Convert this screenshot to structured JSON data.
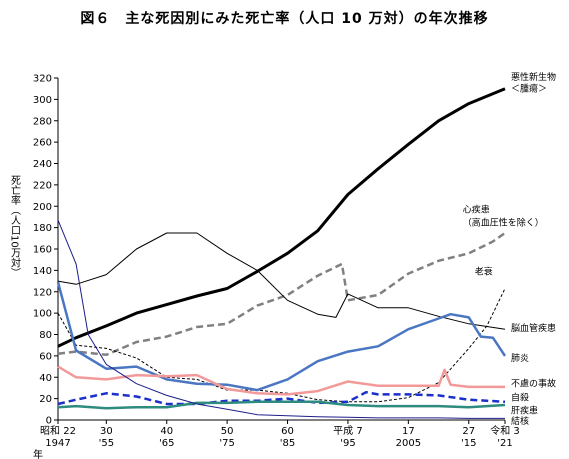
{
  "title": "図６　主な死因別にみた死亡率（人口 10 万対）の年次推移",
  "chart_data": {
    "type": "line",
    "title": "図６　主な死因別にみた死亡率（人口 10 万対）の年次推移",
    "ylabel": "死亡率（人口10万対）",
    "xlabel": "年",
    "ylim": [
      0,
      320
    ],
    "xlim": [
      1947,
      2021
    ],
    "grid": false,
    "y_ticks": [
      "0",
      "20",
      "40",
      "60",
      "80",
      "100",
      "120",
      "140",
      "160",
      "180",
      "200",
      "220",
      "240",
      "260",
      "280",
      "300",
      "320"
    ],
    "x_ticks": [
      {
        "x": 1947,
        "top": "昭和 22",
        "bottom": "1947"
      },
      {
        "x": 1955,
        "top": "30",
        "bottom": "'55"
      },
      {
        "x": 1965,
        "top": "40",
        "bottom": "'65"
      },
      {
        "x": 1975,
        "top": "50",
        "bottom": "'75"
      },
      {
        "x": 1985,
        "top": "60",
        "bottom": "'85"
      },
      {
        "x": 1995,
        "top": "平成 7",
        "bottom": "'95"
      },
      {
        "x": 2005,
        "top": "17",
        "bottom": "2005"
      },
      {
        "x": 2015,
        "top": "27",
        "bottom": "'15"
      },
      {
        "x": 2021,
        "top": "令和 3",
        "bottom": "'21"
      }
    ],
    "series": [
      {
        "name": "悪性新生物＜腫瘍＞",
        "color": "#000000",
        "dash": "",
        "width": 3,
        "points": [
          [
            1947,
            69
          ],
          [
            1950,
            77
          ],
          [
            1955,
            88
          ],
          [
            1960,
            100
          ],
          [
            1965,
            108
          ],
          [
            1970,
            116
          ],
          [
            1975,
            123
          ],
          [
            1980,
            139
          ],
          [
            1985,
            156
          ],
          [
            1990,
            177
          ],
          [
            1995,
            211
          ],
          [
            2000,
            235
          ],
          [
            2005,
            258
          ],
          [
            2010,
            280
          ],
          [
            2015,
            296
          ],
          [
            2021,
            310
          ]
        ]
      },
      {
        "name": "心疾患（高血圧性を除く）",
        "color": "#808080",
        "dash": "7,4",
        "width": 2.5,
        "points": [
          [
            1947,
            62
          ],
          [
            1950,
            64
          ],
          [
            1955,
            61
          ],
          [
            1960,
            73
          ],
          [
            1965,
            78
          ],
          [
            1970,
            87
          ],
          [
            1975,
            90
          ],
          [
            1980,
            107
          ],
          [
            1985,
            117
          ],
          [
            1990,
            135
          ],
          [
            1994,
            146
          ],
          [
            1995,
            112
          ],
          [
            2000,
            117
          ],
          [
            2005,
            137
          ],
          [
            2010,
            149
          ],
          [
            2015,
            156
          ],
          [
            2019,
            167
          ],
          [
            2021,
            175
          ]
        ]
      },
      {
        "name": "老衰",
        "color": "#000000",
        "dash": "3,2",
        "width": 1,
        "points": [
          [
            1947,
            100
          ],
          [
            1950,
            70
          ],
          [
            1955,
            67
          ],
          [
            1960,
            58
          ],
          [
            1965,
            40
          ],
          [
            1970,
            38
          ],
          [
            1975,
            28
          ],
          [
            1980,
            28
          ],
          [
            1985,
            25
          ],
          [
            1990,
            19
          ],
          [
            1995,
            17
          ],
          [
            2000,
            17
          ],
          [
            2005,
            21
          ],
          [
            2010,
            35
          ],
          [
            2015,
            67
          ],
          [
            2018,
            88
          ],
          [
            2021,
            123
          ]
        ]
      },
      {
        "name": "脳血管疾患",
        "color": "#000000",
        "dash": "",
        "width": 1,
        "points": [
          [
            1947,
            130
          ],
          [
            1950,
            127
          ],
          [
            1955,
            136
          ],
          [
            1960,
            160
          ],
          [
            1965,
            175
          ],
          [
            1970,
            175
          ],
          [
            1975,
            156
          ],
          [
            1980,
            140
          ],
          [
            1985,
            112
          ],
          [
            1990,
            99
          ],
          [
            1993,
            96
          ],
          [
            1995,
            118
          ],
          [
            2000,
            105
          ],
          [
            2005,
            105
          ],
          [
            2010,
            97
          ],
          [
            2015,
            90
          ],
          [
            2021,
            85
          ]
        ]
      },
      {
        "name": "肺炎",
        "color": "#4A76C2",
        "dash": "",
        "width": 2.5,
        "points": [
          [
            1947,
            129
          ],
          [
            1950,
            65
          ],
          [
            1955,
            48
          ],
          [
            1960,
            50
          ],
          [
            1965,
            38
          ],
          [
            1970,
            34
          ],
          [
            1975,
            33
          ],
          [
            1980,
            28
          ],
          [
            1985,
            38
          ],
          [
            1990,
            55
          ],
          [
            1995,
            64
          ],
          [
            2000,
            69
          ],
          [
            2005,
            85
          ],
          [
            2010,
            95
          ],
          [
            2012,
            99
          ],
          [
            2015,
            96
          ],
          [
            2017,
            78
          ],
          [
            2019,
            77
          ],
          [
            2021,
            60
          ]
        ]
      },
      {
        "name": "不慮の事故",
        "color": "#F29A9A",
        "dash": "",
        "width": 2.5,
        "points": [
          [
            1947,
            50
          ],
          [
            1950,
            40
          ],
          [
            1955,
            38
          ],
          [
            1960,
            42
          ],
          [
            1965,
            41
          ],
          [
            1970,
            42
          ],
          [
            1975,
            29
          ],
          [
            1980,
            25
          ],
          [
            1985,
            24
          ],
          [
            1990,
            27
          ],
          [
            1995,
            36
          ],
          [
            2000,
            32
          ],
          [
            2005,
            32
          ],
          [
            2010,
            32
          ],
          [
            2011,
            47
          ],
          [
            2012,
            33
          ],
          [
            2015,
            31
          ],
          [
            2021,
            31
          ]
        ]
      },
      {
        "name": "自殺",
        "color": "#1B2FC9",
        "dash": "7,4",
        "width": 2.5,
        "points": [
          [
            1947,
            15
          ],
          [
            1950,
            19
          ],
          [
            1955,
            25
          ],
          [
            1960,
            22
          ],
          [
            1965,
            15
          ],
          [
            1970,
            15
          ],
          [
            1975,
            18
          ],
          [
            1980,
            18
          ],
          [
            1985,
            20
          ],
          [
            1990,
            16
          ],
          [
            1995,
            17
          ],
          [
            1998,
            26
          ],
          [
            2000,
            24
          ],
          [
            2005,
            24
          ],
          [
            2010,
            23
          ],
          [
            2015,
            19
          ],
          [
            2021,
            17
          ]
        ]
      },
      {
        "name": "肝疾患",
        "color": "#2E8B80",
        "dash": "",
        "width": 2.5,
        "points": [
          [
            1947,
            12
          ],
          [
            1950,
            13
          ],
          [
            1955,
            11
          ],
          [
            1960,
            12
          ],
          [
            1965,
            12
          ],
          [
            1970,
            16
          ],
          [
            1975,
            16
          ],
          [
            1980,
            17
          ],
          [
            1985,
            17
          ],
          [
            1990,
            17
          ],
          [
            1995,
            14
          ],
          [
            2000,
            13
          ],
          [
            2005,
            13
          ],
          [
            2010,
            13
          ],
          [
            2015,
            12
          ],
          [
            2021,
            14
          ]
        ]
      },
      {
        "name": "結核",
        "color": "#1E1E8C",
        "dash": "",
        "width": 1,
        "points": [
          [
            1947,
            187
          ],
          [
            1950,
            146
          ],
          [
            1952,
            80
          ],
          [
            1955,
            52
          ],
          [
            1960,
            34
          ],
          [
            1965,
            23
          ],
          [
            1970,
            15
          ],
          [
            1975,
            10
          ],
          [
            1980,
            5
          ],
          [
            1985,
            4
          ],
          [
            1990,
            3
          ],
          [
            1995,
            2.5
          ],
          [
            2000,
            2
          ],
          [
            2005,
            2
          ],
          [
            2010,
            2
          ],
          [
            2015,
            1.5
          ],
          [
            2021,
            1.5
          ]
        ]
      }
    ],
    "annotations": [
      {
        "text": "悪性新生物",
        "x": 2022,
        "y": 321
      },
      {
        "text": "＜腫瘍＞",
        "x": 2022,
        "y": 310
      },
      {
        "text": "心疾患",
        "x": 2014,
        "y": 197
      },
      {
        "text": "（高血圧性を除く）",
        "x": 2014,
        "y": 185
      },
      {
        "text": "老衰",
        "x": 2016,
        "y": 139
      },
      {
        "text": "脳血管疾患",
        "x": 2022,
        "y": 86
      },
      {
        "text": "肺炎",
        "x": 2022,
        "y": 58
      },
      {
        "text": "不慮の事故",
        "x": 2022,
        "y": 34
      },
      {
        "text": "自殺",
        "x": 2022,
        "y": 21
      },
      {
        "text": "肝疾患",
        "x": 2022,
        "y": 9
      },
      {
        "text": "結核",
        "x": 2022,
        "y": -1
      }
    ]
  }
}
